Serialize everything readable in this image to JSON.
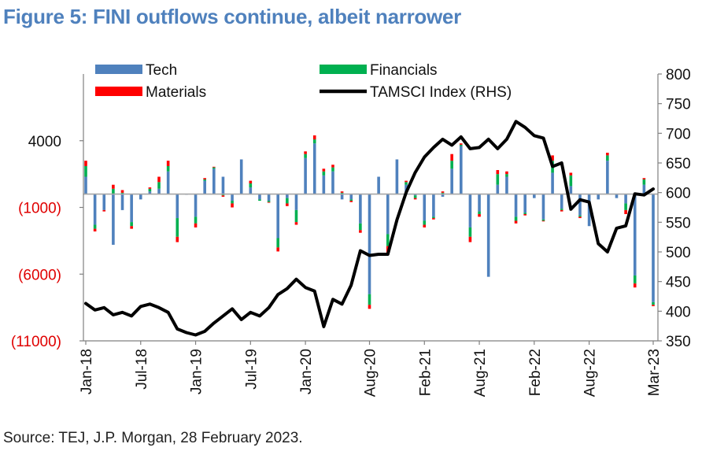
{
  "title": "Figure 5: FINI outflows continue, albeit narrower",
  "source": "Source: TEJ, J.P. Morgan, 28 February 2023.",
  "chart_data": {
    "type": "bar",
    "stacked": true,
    "title": "Figure 5: FINI outflows continue, albeit narrower",
    "xlabel": "",
    "ylabel": "",
    "grid": false,
    "legend_position": "top",
    "ylim": [
      -11000,
      9000
    ],
    "ylim_right": [
      350,
      800
    ],
    "left_ticks": [
      {
        "value": 4000,
        "label": "4000",
        "negative": false
      },
      {
        "value": -1000,
        "label": "(1000)",
        "negative": true
      },
      {
        "value": -6000,
        "label": "(6000)",
        "negative": true
      },
      {
        "value": -11000,
        "label": "(11000)",
        "negative": true
      }
    ],
    "right_ticks": [
      350,
      400,
      450,
      500,
      550,
      600,
      650,
      700,
      750,
      800
    ],
    "x_labels": [
      {
        "index": 0,
        "label": "Jan-18"
      },
      {
        "index": 6,
        "label": "Jul-18"
      },
      {
        "index": 12,
        "label": "Jan-19"
      },
      {
        "index": 18,
        "label": "Jul-19"
      },
      {
        "index": 24,
        "label": "Jan-20"
      },
      {
        "index": 31,
        "label": "Aug-20"
      },
      {
        "index": 37,
        "label": "Feb-21"
      },
      {
        "index": 43,
        "label": "Aug-21"
      },
      {
        "index": 49,
        "label": "Feb-22"
      },
      {
        "index": 55,
        "label": "Aug-22"
      },
      {
        "index": 62,
        "label": "Mar-23"
      }
    ],
    "n_months": 63,
    "series": [
      {
        "name": "Tech",
        "color": "#4f81bd",
        "axis": "left",
        "kind": "bar"
      },
      {
        "name": "Financials",
        "color": "#00b050",
        "axis": "left",
        "kind": "bar"
      },
      {
        "name": "Materials",
        "color": "#ff0000",
        "axis": "left",
        "kind": "bar"
      },
      {
        "name": "TAMSCI Index (RHS)",
        "color": "#000000",
        "axis": "right",
        "kind": "line"
      }
    ],
    "bars": [
      [
        1300,
        800,
        400
      ],
      [
        -2300,
        -300,
        -200
      ],
      [
        -1200,
        0,
        -100
      ],
      [
        -3800,
        400,
        300
      ],
      [
        -1200,
        100,
        200
      ],
      [
        -2100,
        -300,
        -200
      ],
      [
        -400,
        0,
        0
      ],
      [
        200,
        200,
        100
      ],
      [
        400,
        500,
        400
      ],
      [
        1700,
        400,
        400
      ],
      [
        -1800,
        -1400,
        -400
      ],
      [
        -50,
        0,
        0
      ],
      [
        -1700,
        -500,
        -300
      ],
      [
        1000,
        100,
        100
      ],
      [
        1900,
        100,
        50
      ],
      [
        1300,
        -100,
        -100
      ],
      [
        -500,
        -200,
        -300
      ],
      [
        2600,
        0,
        0
      ],
      [
        500,
        300,
        200
      ],
      [
        -400,
        -100,
        0
      ],
      [
        -500,
        -100,
        -50
      ],
      [
        -3300,
        -700,
        -300
      ],
      [
        -300,
        -400,
        -200
      ],
      [
        -1200,
        -900,
        -200
      ],
      [
        2700,
        300,
        200
      ],
      [
        3800,
        300,
        300
      ],
      [
        1400,
        300,
        200
      ],
      [
        1700,
        300,
        200
      ],
      [
        -400,
        100,
        100
      ],
      [
        -400,
        -100,
        -100
      ],
      [
        -2200,
        -500,
        -200
      ],
      [
        -7500,
        -800,
        -300
      ],
      [
        1300,
        0,
        0
      ],
      [
        -3000,
        -900,
        -500
      ],
      [
        2600,
        0,
        0
      ],
      [
        700,
        200,
        100
      ],
      [
        -100,
        -200,
        -100
      ],
      [
        -2000,
        -300,
        -200
      ],
      [
        -1700,
        -100,
        -100
      ],
      [
        -200,
        100,
        100
      ],
      [
        1900,
        600,
        500
      ],
      [
        3600,
        100,
        100
      ],
      [
        -2500,
        -700,
        -400
      ],
      [
        -1300,
        -200,
        -200
      ],
      [
        -6200,
        0,
        0
      ],
      [
        700,
        800,
        300
      ],
      [
        1300,
        200,
        200
      ],
      [
        -1700,
        -300,
        -200
      ],
      [
        -1400,
        -100,
        -100
      ],
      [
        -300,
        0,
        0
      ],
      [
        -1900,
        -100,
        -50
      ],
      [
        1600,
        900,
        400
      ],
      [
        -1100,
        -100,
        -100
      ],
      [
        600,
        800,
        200
      ],
      [
        -1600,
        -100,
        -100
      ],
      [
        -2400,
        0,
        0
      ],
      [
        -400,
        0,
        0
      ],
      [
        2500,
        400,
        200
      ],
      [
        -300,
        0,
        0
      ],
      [
        -700,
        -500,
        -300
      ],
      [
        -6100,
        -600,
        -300
      ],
      [
        700,
        400,
        100
      ],
      [
        -8100,
        -200,
        -100
      ]
    ],
    "index": [
      413,
      402,
      406,
      394,
      398,
      392,
      408,
      412,
      406,
      398,
      370,
      364,
      360,
      366,
      380,
      392,
      404,
      386,
      398,
      392,
      406,
      428,
      438,
      454,
      440,
      434,
      374,
      420,
      412,
      444,
      502,
      494,
      496,
      496,
      554,
      600,
      634,
      660,
      676,
      690,
      680,
      694,
      674,
      676,
      690,
      674,
      690,
      720,
      710,
      696,
      692,
      644,
      650,
      572,
      588,
      584,
      514,
      500,
      540,
      544,
      598,
      596,
      606
    ]
  }
}
